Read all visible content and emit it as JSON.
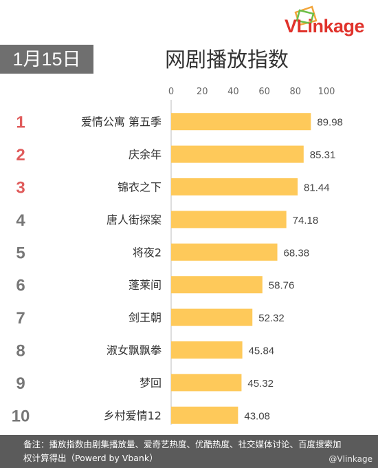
{
  "brand": {
    "name": "VLinkage"
  },
  "header": {
    "date": "1月15日",
    "title": "网剧播放指数"
  },
  "colors": {
    "bar": "#fec95a",
    "rank_top": "#e05c5c",
    "rank_rest": "#777777",
    "axis": "#bbbbbb"
  },
  "chart_data": {
    "type": "bar",
    "orientation": "horizontal",
    "title": "网剧播放指数",
    "xlim": [
      0,
      100
    ],
    "xticks": [
      0,
      20,
      40,
      60,
      80,
      100
    ],
    "ranks": [
      "1",
      "2",
      "3",
      "4",
      "5",
      "6",
      "7",
      "8",
      "9",
      "10"
    ],
    "categories": [
      "爱情公寓 第五季",
      "庆余年",
      "锦衣之下",
      "唐人街探案",
      "将夜2",
      "蓬莱间",
      "剑王朝",
      "淑女飘飘拳",
      "梦回",
      "乡村爱情12"
    ],
    "values": [
      89.98,
      85.31,
      81.44,
      74.18,
      68.38,
      58.76,
      52.32,
      45.84,
      45.32,
      43.08
    ],
    "value_labels": [
      "89.98",
      "85.31",
      "81.44",
      "74.18",
      "68.38",
      "58.76",
      "52.32",
      "45.84",
      "45.32",
      "43.08"
    ]
  },
  "footer": {
    "note": "备注：播放指数由剧集播放量、爱奇艺热度、优酷热度、社交媒体讨论、百度搜索加权计算得出（Powerd by Vbank）",
    "source": "@Vlinkage"
  }
}
